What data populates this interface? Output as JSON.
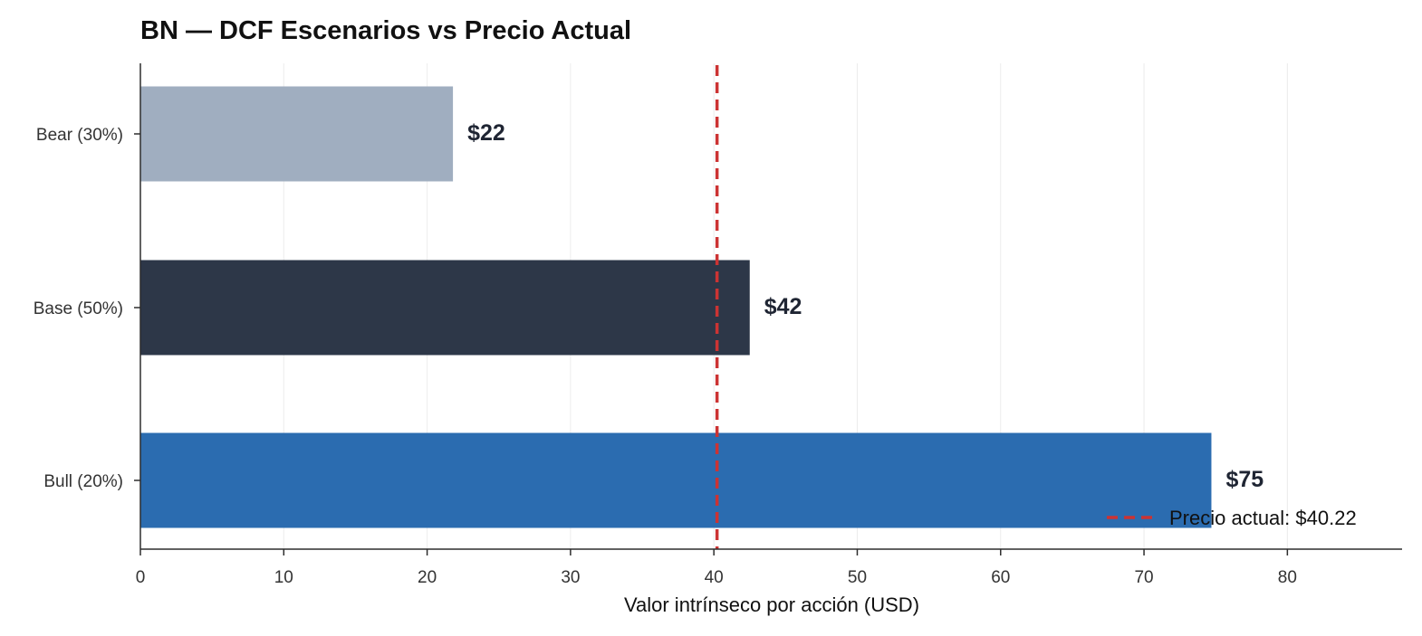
{
  "chart_data": {
    "type": "bar",
    "orientation": "horizontal",
    "title": "BN — DCF Escenarios vs Precio Actual",
    "xlabel": "Valor intrínseco por acción (USD)",
    "ylabel": "",
    "xlim": [
      0,
      88
    ],
    "xticks": [
      0,
      10,
      20,
      30,
      40,
      50,
      60,
      70,
      80
    ],
    "grid": "vertical",
    "categories": [
      "Bear (30%)",
      "Base (50%)",
      "Bull (20%)"
    ],
    "values": [
      21.8,
      42.5,
      74.7
    ],
    "data_labels": [
      "$22",
      "$42",
      "$75"
    ],
    "colors": [
      "#a0aec0",
      "#2d3748",
      "#2b6cb0"
    ],
    "reference_line": {
      "value": 40.22,
      "label": "Precio actual: $40.22",
      "color": "#cc3333",
      "style": "dashed"
    },
    "legend_position": "lower-right"
  }
}
